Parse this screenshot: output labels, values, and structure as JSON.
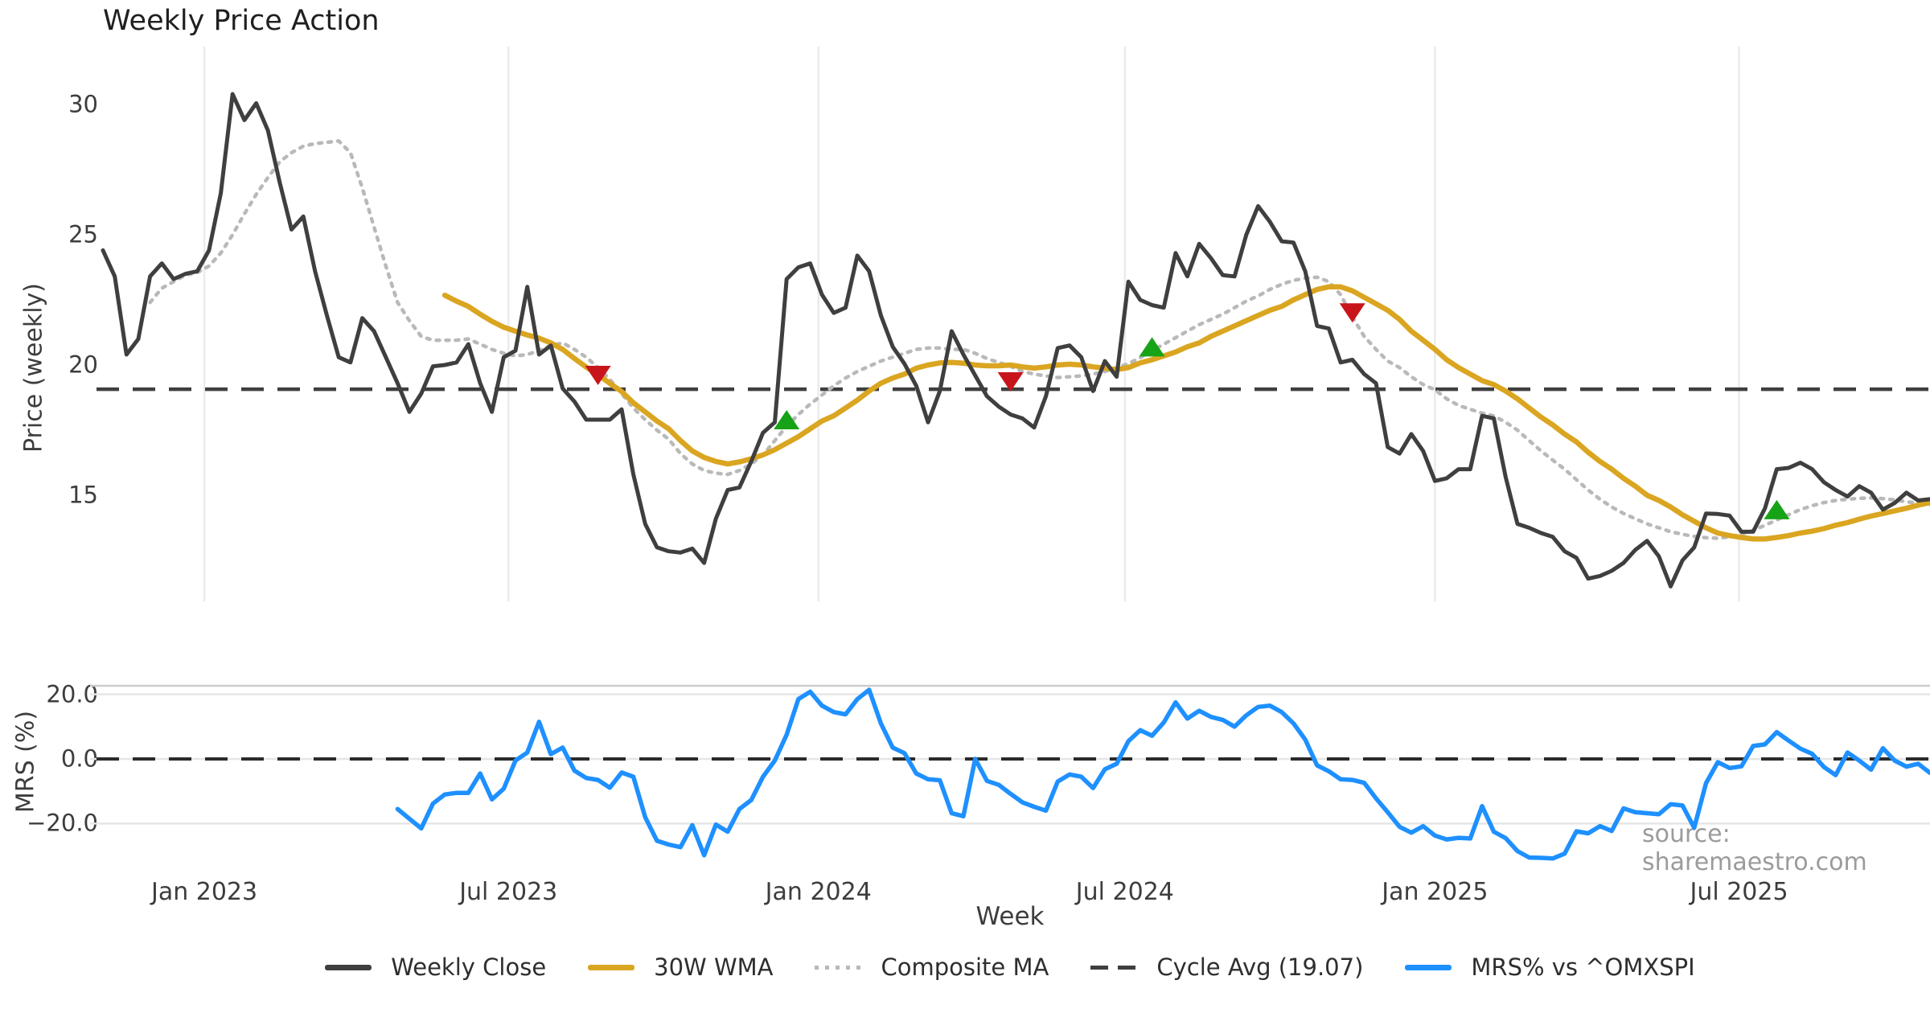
{
  "title": "Weekly Price Action",
  "source_note": "source: sharemaestro.com",
  "xlabel": "Week",
  "price_panel": {
    "ylabel": "Price (weekly)",
    "yticks": [
      "30",
      "25",
      "20",
      "15"
    ]
  },
  "mrs_panel": {
    "ylabel": "MRS (%)",
    "yticks": [
      "20.0",
      "0.0",
      "−20.0"
    ]
  },
  "legend": [
    {
      "label": "Weekly Close",
      "color": "#3f3f3f",
      "style": "solid"
    },
    {
      "label": "30W WMA",
      "color": "#DAA520",
      "style": "solid"
    },
    {
      "label": "Composite MA",
      "color": "#b9b9b9",
      "style": "dotted"
    },
    {
      "label": "Cycle Avg (19.07)",
      "color": "#3f3f3f",
      "style": "dashed"
    },
    {
      "label": "MRS% vs ^OMXSPI",
      "color": "#1E90FF",
      "style": "solid"
    }
  ],
  "chart_data": {
    "type": "line",
    "panels": [
      "price",
      "mrs"
    ],
    "x_axis": {
      "frequency": "weekly",
      "start_date": "2022-10-31",
      "total_weeks": 156,
      "tick_labels": [
        "Jan 2023",
        "Jul 2023",
        "Jan 2024",
        "Jul 2024",
        "Jan 2025",
        "Jul 2025"
      ],
      "tick_weeks": [
        8.6,
        34.4,
        60.7,
        86.7,
        113.0,
        138.8
      ]
    },
    "price_axis": {
      "ticks": [
        30,
        25,
        20,
        15
      ],
      "range_hint": [
        11.0,
        31.5
      ],
      "grid": "vertical-only"
    },
    "mrs_axis": {
      "ticks": [
        20.0,
        0.0,
        -20.0
      ],
      "range_hint": [
        -35.0,
        22.5
      ],
      "grid": "horizontal-only"
    },
    "cycle_avg": 19.07,
    "mrs_zero_line": 0.0,
    "series": {
      "weekly_close": {
        "name": "Weekly Close",
        "color": "#3f3f3f",
        "start_week": 0,
        "values": [
          24.4,
          23.4,
          20.4,
          21.0,
          23.4,
          23.9,
          23.3,
          23.5,
          23.6,
          24.4,
          26.6,
          30.4,
          29.4,
          30.05,
          29.0,
          27.0,
          25.2,
          25.7,
          23.6,
          21.9,
          20.3,
          20.1,
          21.8,
          21.3,
          20.3,
          19.3,
          18.2,
          18.9,
          19.95,
          20.0,
          20.1,
          20.8,
          19.3,
          18.2,
          20.3,
          20.55,
          23.0,
          20.4,
          20.75,
          19.1,
          18.6,
          17.9,
          17.9,
          17.9,
          18.3,
          15.8,
          13.9,
          13.0,
          12.85,
          12.8,
          12.95,
          12.4,
          14.1,
          15.2,
          15.3,
          16.3,
          17.4,
          17.8,
          23.3,
          23.75,
          23.9,
          22.7,
          22.0,
          22.2,
          24.2,
          23.6,
          21.9,
          20.7,
          20.05,
          19.2,
          17.8,
          19.0,
          21.3,
          20.4,
          19.6,
          18.8,
          18.4,
          18.1,
          17.95,
          17.6,
          18.8,
          20.65,
          20.75,
          20.3,
          19.0,
          20.15,
          19.55,
          23.2,
          22.5,
          22.3,
          22.2,
          24.3,
          23.4,
          24.65,
          24.1,
          23.45,
          23.4,
          25.0,
          26.1,
          25.5,
          24.75,
          24.7,
          23.6,
          21.5,
          21.4,
          20.1,
          20.2,
          19.65,
          19.3,
          16.85,
          16.6,
          17.35,
          16.7,
          15.55,
          15.65,
          16.0,
          16.0,
          18.05,
          17.95,
          15.7,
          13.9,
          13.75,
          13.55,
          13.4,
          12.85,
          12.6,
          11.8,
          11.9,
          12.1,
          12.4,
          12.9,
          13.25,
          12.65,
          11.5,
          12.5,
          13.0,
          14.3,
          14.28,
          14.22,
          13.6,
          13.6,
          14.5,
          16.0,
          16.05,
          16.25,
          16.0,
          15.5,
          15.2,
          14.95,
          15.35,
          15.1,
          14.45,
          14.7,
          15.1,
          14.8,
          14.85
        ]
      },
      "wma_30w": {
        "name": "30W WMA",
        "color": "#DAA520",
        "start_week": 29,
        "values": [
          22.68,
          22.45,
          22.25,
          21.95,
          21.68,
          21.45,
          21.3,
          21.15,
          21.03,
          20.85,
          20.6,
          20.25,
          19.92,
          19.63,
          19.3,
          18.98,
          18.55,
          18.2,
          17.85,
          17.55,
          17.1,
          16.7,
          16.45,
          16.3,
          16.2,
          16.28,
          16.4,
          16.55,
          16.75,
          17.0,
          17.25,
          17.55,
          17.85,
          18.05,
          18.35,
          18.65,
          19.0,
          19.3,
          19.5,
          19.65,
          19.88,
          20.0,
          20.08,
          20.1,
          20.07,
          20.0,
          19.97,
          19.97,
          20.0,
          19.93,
          19.88,
          19.93,
          20.0,
          20.03,
          20.0,
          19.93,
          19.88,
          19.82,
          19.9,
          20.08,
          20.2,
          20.35,
          20.5,
          20.7,
          20.85,
          21.1,
          21.3,
          21.5,
          21.7,
          21.9,
          22.1,
          22.25,
          22.5,
          22.7,
          22.9,
          23.0,
          23.0,
          22.85,
          22.6,
          22.35,
          22.1,
          21.75,
          21.3,
          20.95,
          20.6,
          20.2,
          19.9,
          19.65,
          19.4,
          19.25,
          19.0,
          18.7,
          18.35,
          18.0,
          17.7,
          17.35,
          17.05,
          16.65,
          16.3,
          16.0,
          15.65,
          15.35,
          15.0,
          14.8,
          14.55,
          14.25,
          14.0,
          13.75,
          13.55,
          13.45,
          13.38,
          13.32,
          13.32,
          13.38,
          13.45,
          13.55,
          13.62,
          13.72,
          13.85,
          13.95,
          14.08,
          14.2,
          14.3,
          14.4,
          14.5,
          14.62,
          14.72
        ]
      },
      "composite_ma": {
        "name": "Composite MA",
        "color": "#b9b9b9",
        "start_week": 4,
        "values": [
          22.4,
          22.95,
          23.2,
          23.45,
          23.55,
          23.8,
          24.3,
          25.0,
          25.8,
          26.55,
          27.2,
          27.8,
          28.15,
          28.4,
          28.5,
          28.55,
          28.6,
          28.15,
          26.8,
          25.3,
          23.8,
          22.4,
          21.7,
          21.1,
          20.95,
          20.95,
          20.95,
          21.0,
          20.8,
          20.6,
          20.45,
          20.35,
          20.4,
          20.55,
          20.75,
          20.85,
          20.6,
          20.3,
          19.9,
          19.45,
          18.9,
          18.35,
          17.9,
          17.5,
          17.15,
          16.6,
          16.2,
          15.95,
          15.85,
          15.8,
          15.95,
          16.2,
          16.55,
          17.1,
          17.65,
          18.1,
          18.5,
          18.85,
          19.2,
          19.5,
          19.75,
          19.95,
          20.15,
          20.3,
          20.45,
          20.6,
          20.65,
          20.65,
          20.6,
          20.6,
          20.45,
          20.25,
          20.1,
          19.95,
          19.75,
          19.65,
          19.58,
          19.52,
          19.55,
          19.58,
          19.65,
          19.75,
          19.9,
          20.05,
          20.28,
          20.55,
          20.8,
          21.05,
          21.3,
          21.55,
          21.75,
          21.95,
          22.2,
          22.45,
          22.65,
          22.9,
          23.1,
          23.25,
          23.33,
          23.37,
          23.2,
          22.7,
          21.85,
          21.1,
          20.6,
          20.15,
          19.9,
          19.55,
          19.25,
          19.05,
          18.7,
          18.45,
          18.3,
          18.15,
          18.05,
          17.8,
          17.5,
          17.1,
          16.7,
          16.35,
          16.0,
          15.6,
          15.2,
          14.85,
          14.55,
          14.3,
          14.1,
          13.9,
          13.75,
          13.6,
          13.5,
          13.42,
          13.37,
          13.35,
          13.4,
          13.5,
          13.65,
          13.85,
          14.05,
          14.25,
          14.45,
          14.6,
          14.72,
          14.8,
          14.85,
          14.88,
          14.9,
          14.87,
          14.82,
          14.75,
          14.7,
          14.65
        ]
      },
      "mrs_pct": {
        "name": "MRS% vs ^OMXSPI",
        "color": "#1E90FF",
        "start_week": 25,
        "values": [
          -15.5,
          -18.5,
          -21.5,
          -13.8,
          -11.0,
          -10.5,
          -10.5,
          -4.5,
          -12.5,
          -9.2,
          -0.5,
          2.0,
          11.5,
          1.5,
          3.5,
          -3.6,
          -5.9,
          -6.5,
          -8.9,
          -4.2,
          -5.5,
          -18.0,
          -25.3,
          -26.5,
          -27.3,
          -20.5,
          -29.8,
          -20.3,
          -22.5,
          -15.5,
          -12.7,
          -5.5,
          -0.5,
          7.5,
          18.5,
          20.8,
          16.5,
          14.5,
          13.8,
          18.5,
          21.4,
          11.0,
          3.5,
          1.8,
          -4.5,
          -6.3,
          -6.6,
          -16.8,
          -17.7,
          0.0,
          -6.8,
          -8.0,
          -10.8,
          -13.4,
          -14.8,
          -16.0,
          -7.0,
          -4.8,
          -5.5,
          -9.0,
          -3.2,
          -1.5,
          5.5,
          8.9,
          7.2,
          11.3,
          17.5,
          12.5,
          14.9,
          13.0,
          12.1,
          10.0,
          13.5,
          16.1,
          16.5,
          14.5,
          11.0,
          6.0,
          -2.0,
          -3.8,
          -6.3,
          -6.5,
          -7.4,
          -12.2,
          -16.5,
          -21.0,
          -22.8,
          -20.8,
          -23.7,
          -24.9,
          -24.4,
          -24.6,
          -14.6,
          -22.5,
          -24.5,
          -28.5,
          -30.5,
          -30.6,
          -30.8,
          -29.3,
          -22.4,
          -23.0,
          -20.8,
          -22.3,
          -15.3,
          -16.5,
          -16.8,
          -17.1,
          -14.0,
          -14.4,
          -21.3,
          -7.5,
          -1.0,
          -2.8,
          -2.3,
          4.0,
          4.5,
          8.3,
          5.7,
          3.2,
          1.6,
          -2.5,
          -5.0,
          2.0,
          -0.5,
          -3.3,
          3.3,
          -0.5,
          -2.4,
          -1.5,
          -4.3
        ]
      }
    },
    "signals": [
      {
        "week": 42,
        "price": 19.6,
        "type": "sell",
        "color": "#c8151c"
      },
      {
        "week": 58,
        "price": 17.9,
        "type": "buy",
        "color": "#17a317"
      },
      {
        "week": 77,
        "price": 19.35,
        "type": "sell",
        "color": "#c8151c"
      },
      {
        "week": 89,
        "price": 20.7,
        "type": "buy",
        "color": "#17a317"
      },
      {
        "week": 106,
        "price": 22.0,
        "type": "sell",
        "color": "#c8151c"
      },
      {
        "week": 142,
        "price": 14.45,
        "type": "buy",
        "color": "#17a317"
      }
    ]
  }
}
